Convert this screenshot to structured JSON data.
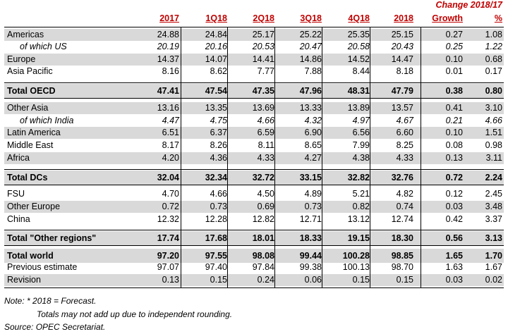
{
  "header": {
    "change_title": "Change 2018/17",
    "columns": [
      "2017",
      "1Q18",
      "2Q18",
      "3Q18",
      "4Q18",
      "2018",
      "Growth",
      "%"
    ]
  },
  "rows": [
    {
      "label": "Americas",
      "values": [
        "24.88",
        "24.84",
        "25.17",
        "25.22",
        "25.35",
        "25.15",
        "0.27",
        "1.08"
      ]
    },
    {
      "label": "of which US",
      "values": [
        "20.19",
        "20.16",
        "20.53",
        "20.47",
        "20.58",
        "20.43",
        "0.25",
        "1.22"
      ]
    },
    {
      "label": "Europe",
      "values": [
        "14.37",
        "14.07",
        "14.41",
        "14.86",
        "14.52",
        "14.47",
        "0.10",
        "0.68"
      ]
    },
    {
      "label": "Asia Pacific",
      "values": [
        "8.16",
        "8.62",
        "7.77",
        "7.88",
        "8.44",
        "8.18",
        "0.01",
        "0.17"
      ]
    },
    {
      "label": "Total OECD",
      "values": [
        "47.41",
        "47.54",
        "47.35",
        "47.96",
        "48.31",
        "47.79",
        "0.38",
        "0.80"
      ]
    },
    {
      "label": "Other Asia",
      "values": [
        "13.16",
        "13.35",
        "13.69",
        "13.33",
        "13.89",
        "13.57",
        "0.41",
        "3.10"
      ]
    },
    {
      "label": "of which India",
      "values": [
        "4.47",
        "4.75",
        "4.66",
        "4.32",
        "4.97",
        "4.67",
        "0.21",
        "4.66"
      ]
    },
    {
      "label": "Latin America",
      "values": [
        "6.51",
        "6.37",
        "6.59",
        "6.90",
        "6.56",
        "6.60",
        "0.10",
        "1.51"
      ]
    },
    {
      "label": "Middle East",
      "values": [
        "8.17",
        "8.26",
        "8.11",
        "8.65",
        "7.99",
        "8.25",
        "0.08",
        "0.98"
      ]
    },
    {
      "label": "Africa",
      "values": [
        "4.20",
        "4.36",
        "4.33",
        "4.27",
        "4.38",
        "4.33",
        "0.13",
        "3.11"
      ]
    },
    {
      "label": "Total DCs",
      "values": [
        "32.04",
        "32.34",
        "32.72",
        "33.15",
        "32.82",
        "32.76",
        "0.72",
        "2.24"
      ]
    },
    {
      "label": "FSU",
      "values": [
        "4.70",
        "4.66",
        "4.50",
        "4.89",
        "5.21",
        "4.82",
        "0.12",
        "2.45"
      ]
    },
    {
      "label": "Other Europe",
      "values": [
        "0.72",
        "0.73",
        "0.69",
        "0.73",
        "0.82",
        "0.74",
        "0.03",
        "3.48"
      ]
    },
    {
      "label": "China",
      "values": [
        "12.32",
        "12.28",
        "12.82",
        "12.71",
        "13.12",
        "12.74",
        "0.42",
        "3.37"
      ]
    },
    {
      "label": "Total \"Other regions\"",
      "values": [
        "17.74",
        "17.68",
        "18.01",
        "18.33",
        "19.15",
        "18.30",
        "0.56",
        "3.13"
      ]
    },
    {
      "label": "Total world",
      "values": [
        "97.20",
        "97.55",
        "98.08",
        "99.44",
        "100.28",
        "98.85",
        "1.65",
        "1.70"
      ]
    },
    {
      "label": "Previous estimate",
      "values": [
        "97.07",
        "97.40",
        "97.84",
        "99.38",
        "100.13",
        "98.70",
        "1.63",
        "1.67"
      ]
    },
    {
      "label": "Revision",
      "values": [
        "0.13",
        "0.15",
        "0.24",
        "0.06",
        "0.15",
        "0.15",
        "0.03",
        "0.02"
      ]
    }
  ],
  "notes": {
    "line1": "Note: * 2018 = Forecast.",
    "line2": "Totals may not add up due to independent rounding.",
    "line3": "Source: OPEC Secretariat."
  }
}
